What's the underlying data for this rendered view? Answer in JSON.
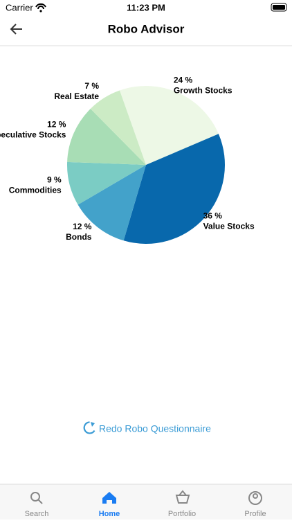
{
  "status_bar": {
    "carrier": "Carrier",
    "time": "11:23 PM"
  },
  "header": {
    "title": "Robo Advisor"
  },
  "chart_data": {
    "type": "pie",
    "categories": [
      "Growth Stocks",
      "Value Stocks",
      "Bonds",
      "Commodities",
      "Speculative Stocks",
      "Real Estate"
    ],
    "values": [
      24,
      36,
      12,
      9,
      12,
      7
    ],
    "value_labels": [
      "24 %",
      "36 %",
      "12 %",
      "9 %",
      "12 %",
      "7 %"
    ],
    "colors": [
      "#edf8e6",
      "#0868ac",
      "#43a2ca",
      "#7bccc4",
      "#a8ddb5",
      "#ccebc5"
    ]
  },
  "button": {
    "label": "Redo Robo Questionnaire"
  },
  "tabs": [
    {
      "label": "Search"
    },
    {
      "label": "Home",
      "active": true
    },
    {
      "label": "Portfolio"
    },
    {
      "label": "Profile"
    }
  ]
}
